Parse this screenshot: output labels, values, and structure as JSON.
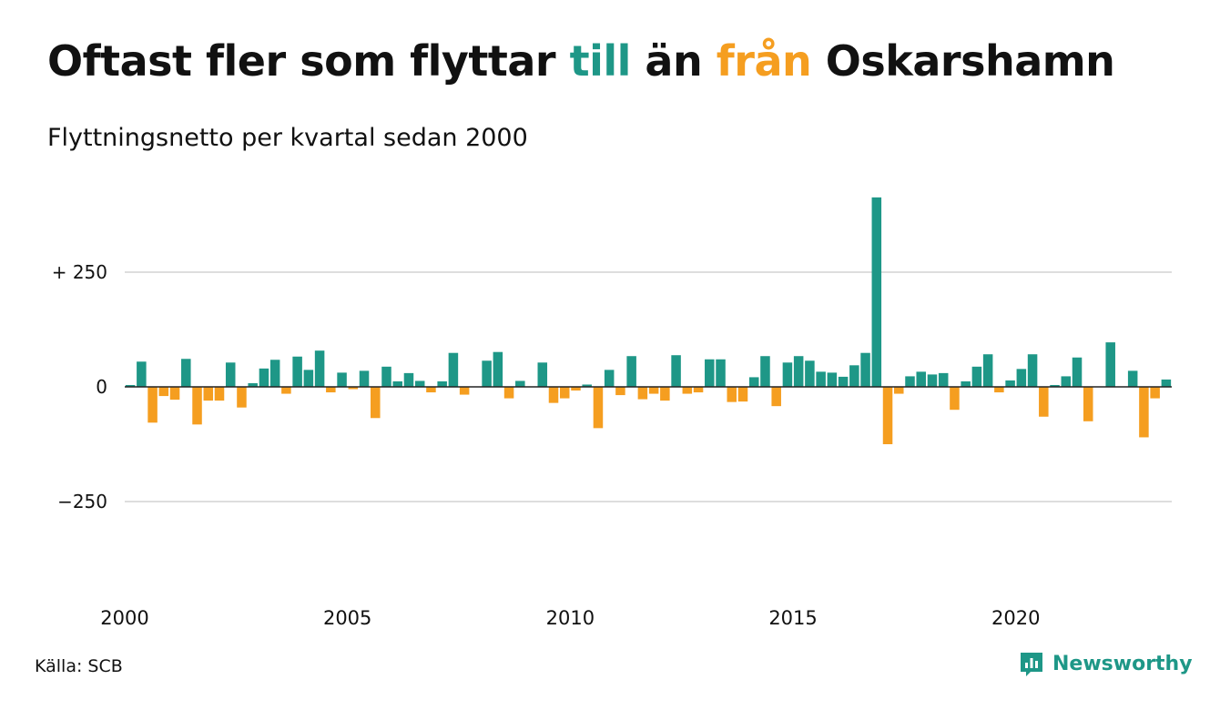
{
  "title": {
    "part1": "Oftast fler som flyttar ",
    "till": "till",
    "part2": " än ",
    "fran": "från",
    "part3": " Oskarshamn"
  },
  "subtitle": "Flyttningsnetto per kvartal sedan 2000",
  "colors": {
    "positive": "#1e9787",
    "negative": "#f59e20",
    "grid": "#dddddd"
  },
  "source": "Källa: SCB",
  "brand": {
    "name": "Newsworthy",
    "icon": "bar-chart-logo-icon"
  },
  "chart_data": {
    "type": "bar",
    "x_start": "2000 Q1",
    "x_end": "2023 Q2",
    "x_ticks": [
      "2000",
      "2005",
      "2010",
      "2015",
      "2020"
    ],
    "y_ticks": [
      {
        "value": 250,
        "label": "+ 250"
      },
      {
        "value": 0,
        "label": "0"
      },
      {
        "value": -250,
        "label": "−250"
      }
    ],
    "ylim": [
      -410,
      430
    ],
    "grid": true,
    "values": [
      4,
      55,
      -78,
      -20,
      -28,
      61,
      -82,
      -30,
      -30,
      53,
      -45,
      8,
      40,
      59,
      -15,
      66,
      37,
      79,
      -12,
      31,
      -5,
      35,
      -68,
      44,
      12,
      30,
      13,
      -12,
      12,
      74,
      -17,
      0,
      57,
      76,
      -25,
      13,
      0,
      53,
      -35,
      -25,
      -8,
      5,
      -90,
      37,
      -18,
      67,
      -27,
      -15,
      -30,
      69,
      -15,
      -12,
      60,
      60,
      -33,
      -32,
      21,
      67,
      -42,
      53,
      67,
      57,
      33,
      31,
      22,
      47,
      74,
      413,
      -125,
      -15,
      23,
      33,
      27,
      30,
      -50,
      12,
      44,
      71,
      -12,
      14,
      39,
      71,
      -65,
      4,
      23,
      64,
      -75,
      0,
      97,
      0,
      35,
      -110,
      -25,
      16
    ]
  }
}
